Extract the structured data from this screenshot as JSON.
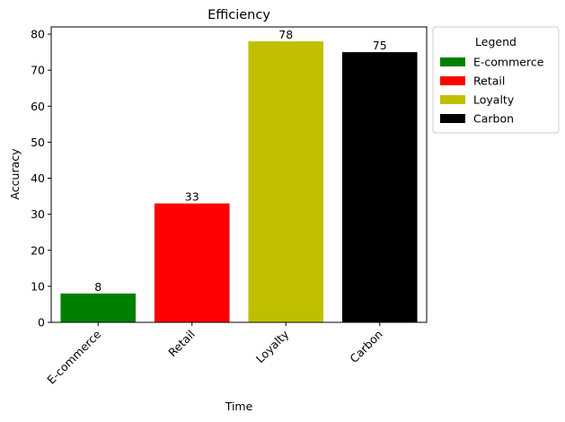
{
  "chart_data": {
    "type": "bar",
    "title": "Efficiency",
    "xlabel": "Time",
    "ylabel": "Accuracy",
    "categories": [
      "E-commerce",
      "Retail",
      "Loyalty",
      "Carbon"
    ],
    "values": [
      8,
      33,
      78,
      75
    ],
    "colors": [
      "#008000",
      "#ff0000",
      "#bfbf00",
      "#000000"
    ],
    "ylim": [
      0,
      82
    ],
    "yticks": [
      0,
      10,
      20,
      30,
      40,
      50,
      60,
      70,
      80
    ],
    "data_labels": [
      "8",
      "33",
      "78",
      "75"
    ],
    "legend": {
      "title": "Legend",
      "placement": "outside right, top",
      "entries": [
        "E-commerce",
        "Retail",
        "Loyalty",
        "Carbon"
      ]
    },
    "grid": false
  }
}
